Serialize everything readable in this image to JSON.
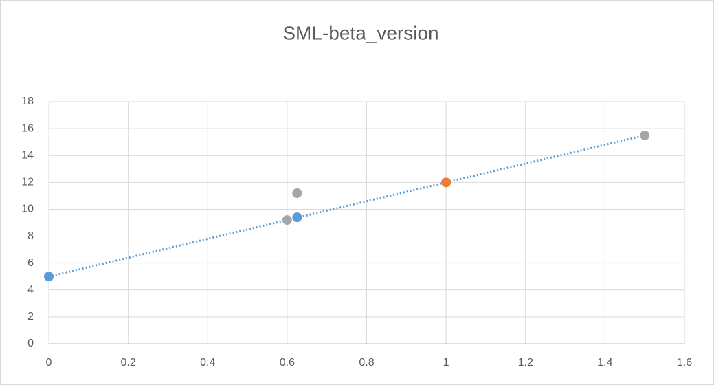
{
  "chart_data": {
    "type": "scatter",
    "title": "SML-beta_version",
    "series": [
      {
        "color": "#5b9bd5",
        "x": [
          0,
          1.5
        ],
        "values": [
          5,
          15.5
        ],
        "line": "dotted"
      },
      {
        "color": "#5b9bd5",
        "x": [
          0,
          0.625
        ],
        "values": [
          5,
          9.4
        ]
      },
      {
        "color": "#ed7d31",
        "x": [
          1
        ],
        "values": [
          12
        ]
      },
      {
        "color": "#a5a5a5",
        "x": [
          0.6,
          0.625,
          1.5
        ],
        "values": [
          9.2,
          11.2,
          15.5
        ]
      }
    ],
    "xlim": [
      0,
      1.6
    ],
    "xticks": [
      0,
      0.2,
      0.4,
      0.6,
      0.8,
      1,
      1.2,
      1.4,
      1.6
    ],
    "ylim": [
      0,
      18
    ],
    "yticks": [
      0,
      2,
      4,
      6,
      8,
      10,
      12,
      14,
      16,
      18
    ],
    "grid": true
  }
}
